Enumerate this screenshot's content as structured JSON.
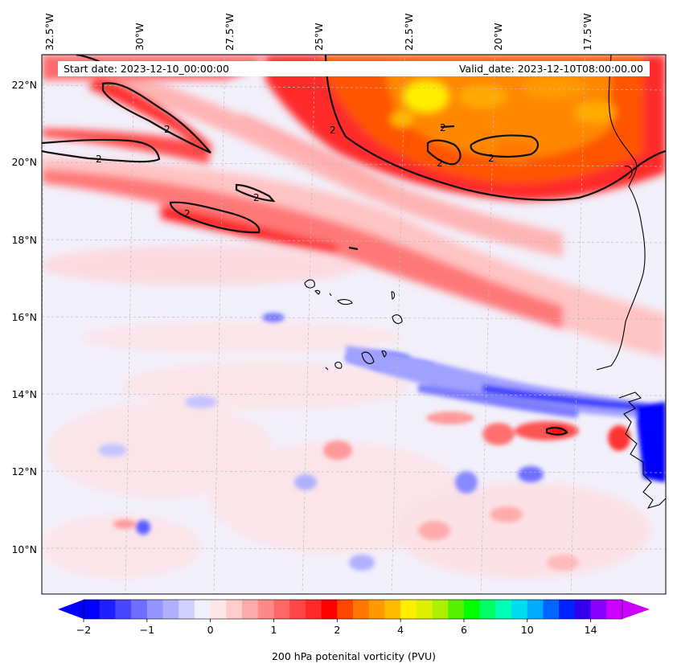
{
  "map": {
    "start_date": "Start date: 2023-12-10_00:00:00",
    "valid_date": "Valid_date: 2023-12-10T08:00:00.00",
    "lon_labels": [
      "32.5°W",
      "30°W",
      "27.5°W",
      "25°W",
      "22.5°W",
      "20°W",
      "17.5°W"
    ],
    "lat_labels": [
      "22°N",
      "20°N",
      "18°N",
      "16°N",
      "14°N",
      "12°N",
      "10°N"
    ],
    "contour_label": "2",
    "gridlines": true
  },
  "colorbar": {
    "label": "200 hPa potenital vorticity (PVU)",
    "ticks": [
      "−2",
      "−1",
      "0",
      "1",
      "2",
      "4",
      "6",
      "10",
      "14"
    ],
    "colors": [
      "#0000ff",
      "#2020ff",
      "#4848ff",
      "#6e6eff",
      "#9494ff",
      "#b0b0ff",
      "#d2d2ff",
      "#f0f0ff",
      "#ffe6e6",
      "#ffcccc",
      "#ffaaaa",
      "#ff8888",
      "#ff6666",
      "#ff4646",
      "#ff2a2a",
      "#ff0000",
      "#ff4400",
      "#ff7700",
      "#ff9900",
      "#ffbb00",
      "#ffee00",
      "#ddf000",
      "#aaf000",
      "#55f000",
      "#00ff00",
      "#00ff66",
      "#00ffbb",
      "#00ddee",
      "#00aaff",
      "#0066ff",
      "#0022ff",
      "#3300ee",
      "#8800ff",
      "#cc00ff"
    ],
    "extend_low_color": "#0000ff",
    "extend_high_color": "#cc00ff"
  }
}
